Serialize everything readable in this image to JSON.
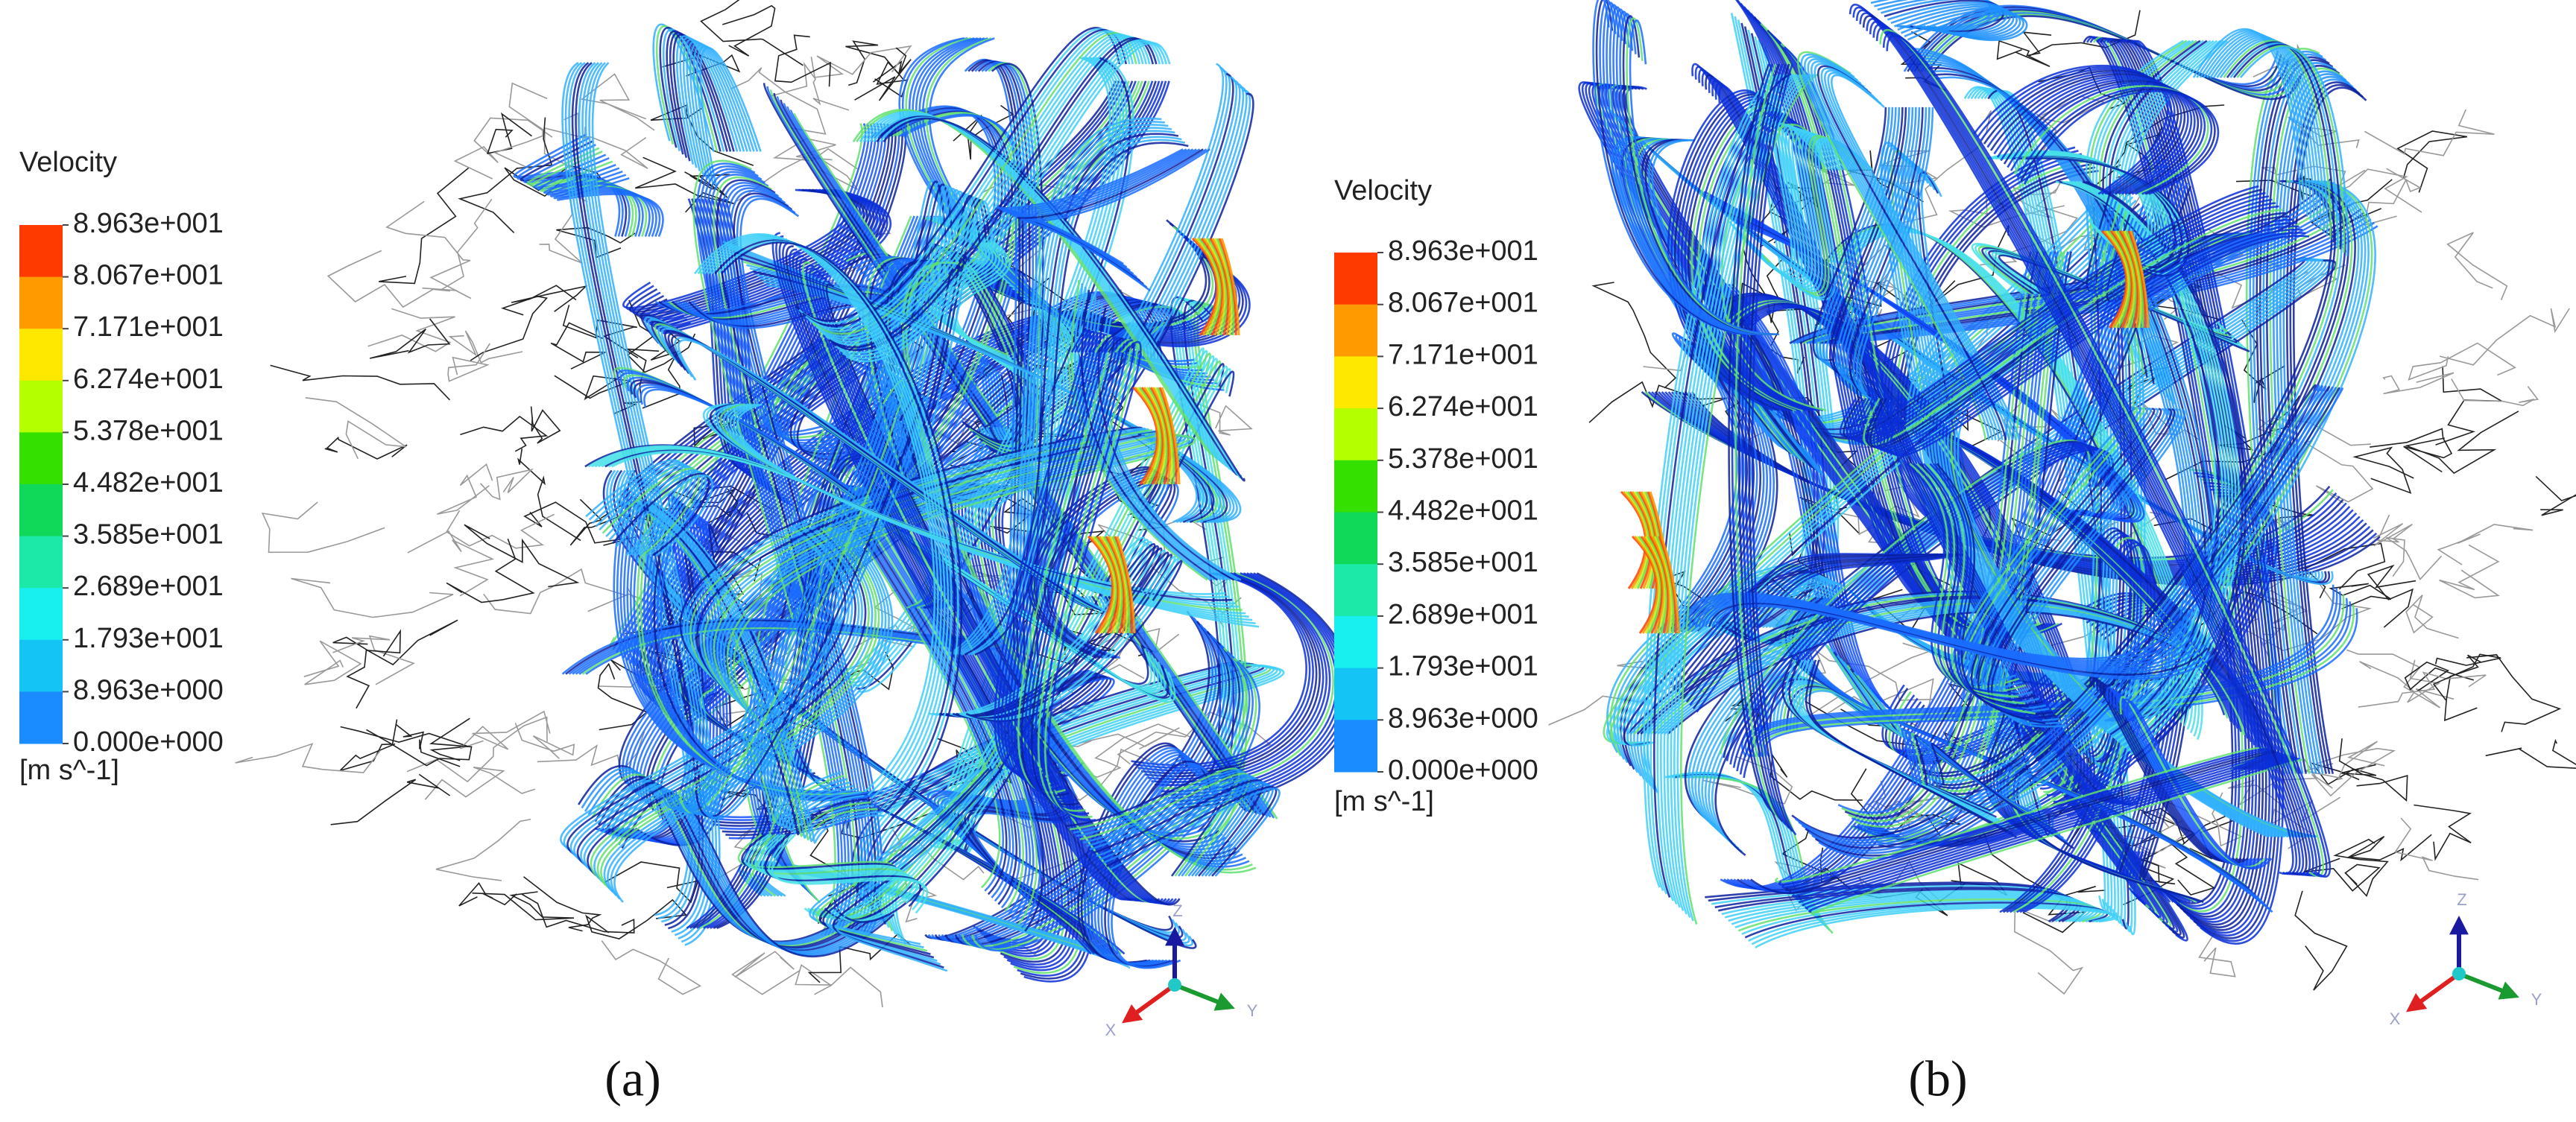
{
  "panels": [
    {
      "legend": {
        "title": "Velocity",
        "labels": [
          "8.963e+001",
          "8.067e+001",
          "7.171e+001",
          "6.274e+001",
          "5.378e+001",
          "4.482e+001",
          "3.585e+001",
          "2.689e+001",
          "1.793e+001",
          "8.963e+000",
          "0.000e+000"
        ],
        "unit": "[m s^-1]"
      },
      "triad": {
        "z": "Z",
        "y": "Y",
        "x": "X"
      },
      "caption": "(a)"
    },
    {
      "legend": {
        "title": "Velocity",
        "labels": [
          "8.963e+001",
          "8.067e+001",
          "7.171e+001",
          "6.274e+001",
          "5.378e+001",
          "4.482e+001",
          "3.585e+001",
          "2.689e+001",
          "1.793e+001",
          "8.963e+000",
          "0.000e+000"
        ],
        "unit": "[m s^-1]"
      },
      "triad": {
        "z": "Z",
        "y": "Y",
        "x": "X"
      },
      "caption": "(b)"
    }
  ]
}
